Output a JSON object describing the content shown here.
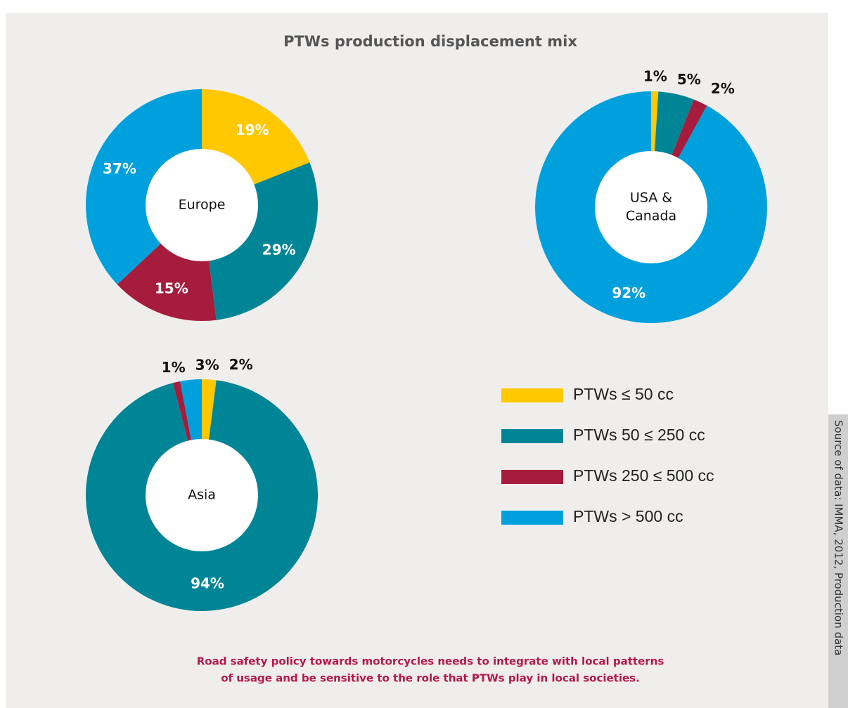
{
  "title": "PTWs production displacement mix",
  "legend": {
    "categories": [
      "PTWs ≤ 50 cc",
      "PTWs 50 ≤ 250 cc",
      "PTWs 250 ≤ 500 cc",
      "PTWs > 500 cc"
    ],
    "colors": [
      "#ffc800",
      "#008596",
      "#a51c3c",
      "#00a0dc"
    ]
  },
  "chart_data": [
    {
      "type": "pie",
      "label": [
        "Europe"
      ],
      "values": [
        19,
        29,
        15,
        37
      ],
      "value_labels": [
        "19%",
        "29%",
        "15%",
        "37%"
      ]
    },
    {
      "type": "pie",
      "label": [
        "USA &",
        "Canada"
      ],
      "values": [
        1,
        5,
        2,
        92
      ],
      "value_labels": [
        "1%",
        "5%",
        "2%",
        "92%"
      ]
    },
    {
      "type": "pie",
      "label": [
        "Asia"
      ],
      "values": [
        2,
        94,
        1,
        3
      ],
      "value_labels": [
        "2%",
        "94%",
        "1%",
        "3%"
      ]
    }
  ],
  "note": [
    "Road safety policy towards motorcycles needs to integrate with local patterns",
    "of usage and be sensitive to the role that PTWs play in local societies."
  ],
  "source": "Source of data: IMMA, 2012, Production data"
}
